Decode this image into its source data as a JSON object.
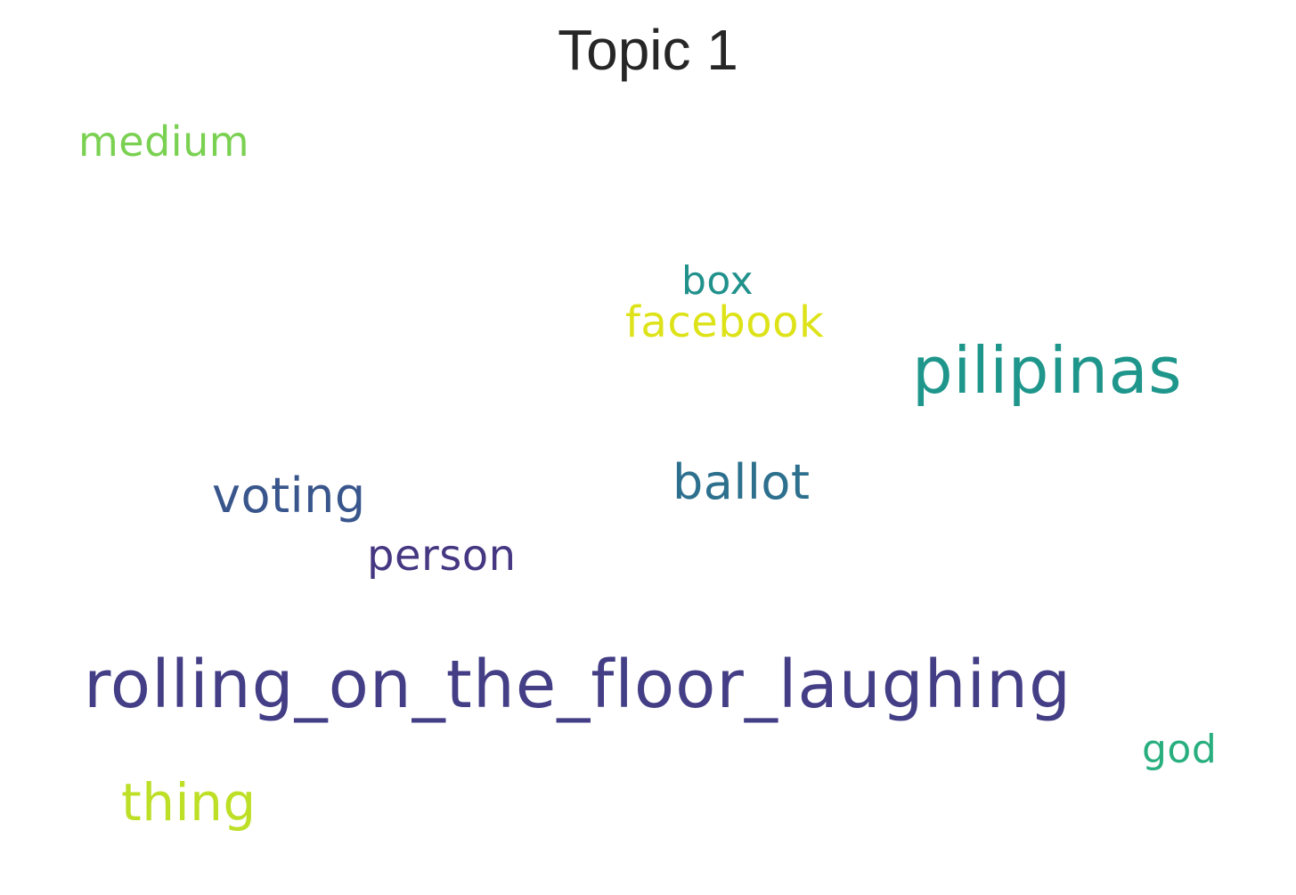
{
  "title": "Topic 1",
  "words": {
    "medium": {
      "text": "medium",
      "color": "#7ad151"
    },
    "box": {
      "text": "box",
      "color": "#21918c"
    },
    "facebook": {
      "text": "facebook",
      "color": "#dde318"
    },
    "pilipinas": {
      "text": "pilipinas",
      "color": "#1f968b"
    },
    "ballot": {
      "text": "ballot",
      "color": "#2d708e"
    },
    "voting": {
      "text": "voting",
      "color": "#39568c"
    },
    "person": {
      "text": "person",
      "color": "#453781"
    },
    "rolling_on_the_floor_laughing": {
      "text": "rolling_on_the_floor_laughing",
      "color": "#433e85"
    },
    "god": {
      "text": "god",
      "color": "#29af7f"
    },
    "thing": {
      "text": "thing",
      "color": "#bddf26"
    }
  }
}
